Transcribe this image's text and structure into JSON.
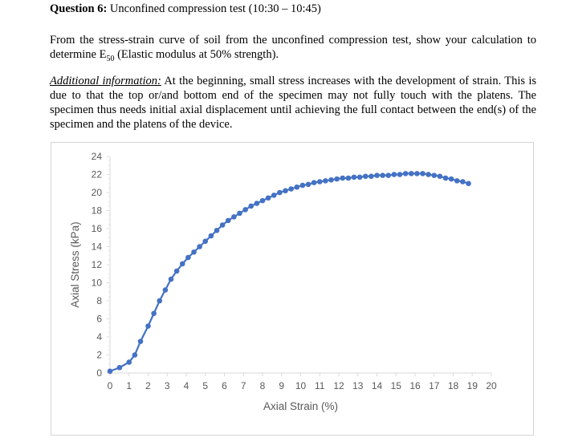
{
  "question": {
    "number_label": "Question 6:",
    "title": "Unconfined compression test (10:30 – 10:45)"
  },
  "instruction": {
    "before_sub": "From the stress-strain curve of soil from the unconfined compression test, show your calculation to determine E",
    "sub": "50",
    "after_sub": " (Elastic modulus at 50% strength)."
  },
  "additional": {
    "label": "Additional information:",
    "text": " At the beginning, small stress increases with the development of strain. This is due to that the top or/and bottom end of the specimen may not fully touch with the platens. The specimen thus needs initial axial displacement until achieving the full contact between the end(s) of the specimen and the platens of the device."
  },
  "chart_data": {
    "type": "scatter",
    "xlabel": "Axial Strain (%)",
    "ylabel": "Axial Stress (kPa)",
    "xlim": [
      0,
      20
    ],
    "ylim": [
      0,
      24
    ],
    "xticks": [
      0,
      1,
      2,
      3,
      4,
      5,
      6,
      7,
      8,
      9,
      10,
      11,
      12,
      13,
      14,
      15,
      16,
      17,
      18,
      19,
      20
    ],
    "yticks": [
      0,
      2,
      4,
      6,
      8,
      10,
      12,
      14,
      16,
      18,
      20,
      22,
      24
    ],
    "grid": false,
    "color": "#4472C4",
    "x": [
      0,
      0.5,
      1,
      1.3,
      1.6,
      2,
      2.3,
      2.6,
      2.9,
      3.2,
      3.5,
      3.8,
      4.1,
      4.4,
      4.7,
      5,
      5.3,
      5.6,
      5.9,
      6.2,
      6.5,
      6.8,
      7.1,
      7.4,
      7.7,
      8,
      8.3,
      8.6,
      8.9,
      9.2,
      9.5,
      9.8,
      10.1,
      10.4,
      10.7,
      11,
      11.3,
      11.6,
      11.9,
      12.2,
      12.5,
      12.8,
      13.1,
      13.4,
      13.7,
      14,
      14.3,
      14.6,
      14.9,
      15.2,
      15.5,
      15.8,
      16.1,
      16.4,
      16.7,
      17,
      17.3,
      17.6,
      17.9,
      18.2,
      18.5,
      18.8
    ],
    "y": [
      0.2,
      0.6,
      1.2,
      2.0,
      3.5,
      5.2,
      6.6,
      8.0,
      9.2,
      10.4,
      11.3,
      12.1,
      12.8,
      13.4,
      14.0,
      14.6,
      15.2,
      15.8,
      16.4,
      16.9,
      17.3,
      17.7,
      18.1,
      18.5,
      18.8,
      19.1,
      19.4,
      19.7,
      20.0,
      20.2,
      20.4,
      20.6,
      20.8,
      20.9,
      21.1,
      21.2,
      21.3,
      21.4,
      21.5,
      21.6,
      21.6,
      21.7,
      21.7,
      21.8,
      21.8,
      21.9,
      21.9,
      21.9,
      22.0,
      22.0,
      22.1,
      22.1,
      22.1,
      22.1,
      22.0,
      21.9,
      21.8,
      21.6,
      21.5,
      21.3,
      21.2,
      21.0
    ]
  }
}
